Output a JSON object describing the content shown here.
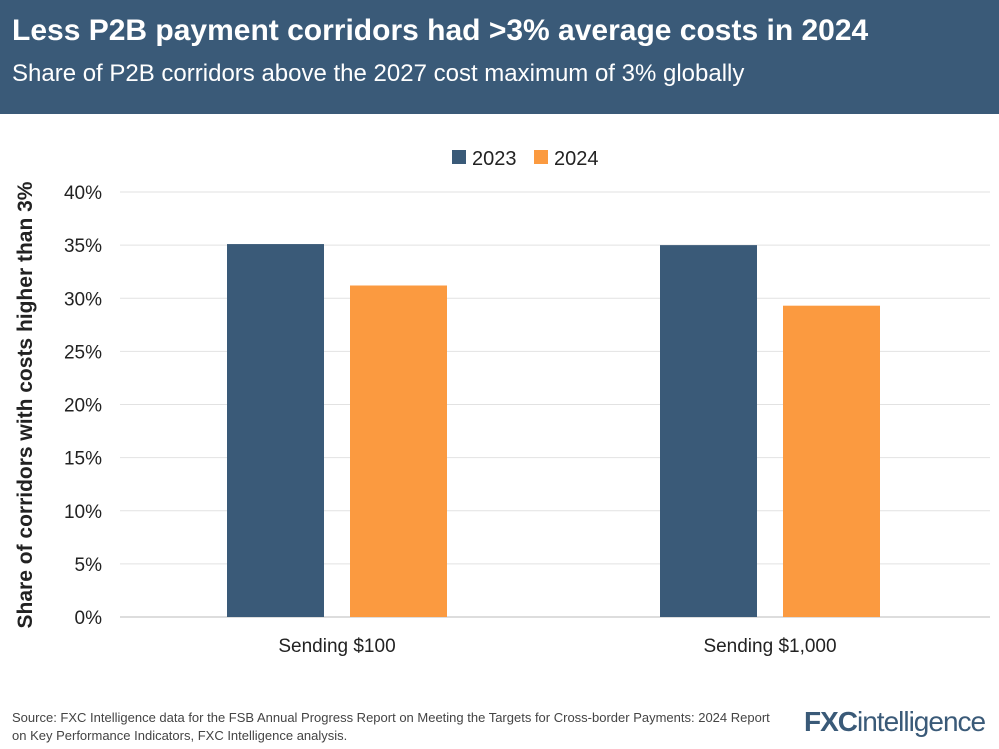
{
  "header": {
    "title": "Less P2B payment corridors had >3% average costs in 2024",
    "subtitle": "Share of P2B corridors above the 2027 cost maximum of 3% globally"
  },
  "chart_data": {
    "type": "bar",
    "categories": [
      "Sending $100",
      "Sending $1,000"
    ],
    "series": [
      {
        "name": "2023",
        "color": "#3a5a78",
        "values": [
          35.1,
          35.0
        ]
      },
      {
        "name": "2024",
        "color": "#fb9a40",
        "values": [
          31.2,
          29.3
        ]
      }
    ],
    "ylabel": "Share of corridors with costs higher than 3%",
    "ylim": [
      0,
      40
    ],
    "yticks": [
      "0%",
      "5%",
      "10%",
      "15%",
      "20%",
      "25%",
      "30%",
      "35%",
      "40%"
    ],
    "grid": true,
    "legend": "top-center"
  },
  "footer": {
    "source": "Source: FXC Intelligence data for the FSB Annual Progress Report on Meeting the Targets for Cross-border Payments: 2024 Report on Key Performance Indicators, FXC Intelligence analysis."
  },
  "logo": {
    "bold": "FXC",
    "light": "intelligence"
  }
}
